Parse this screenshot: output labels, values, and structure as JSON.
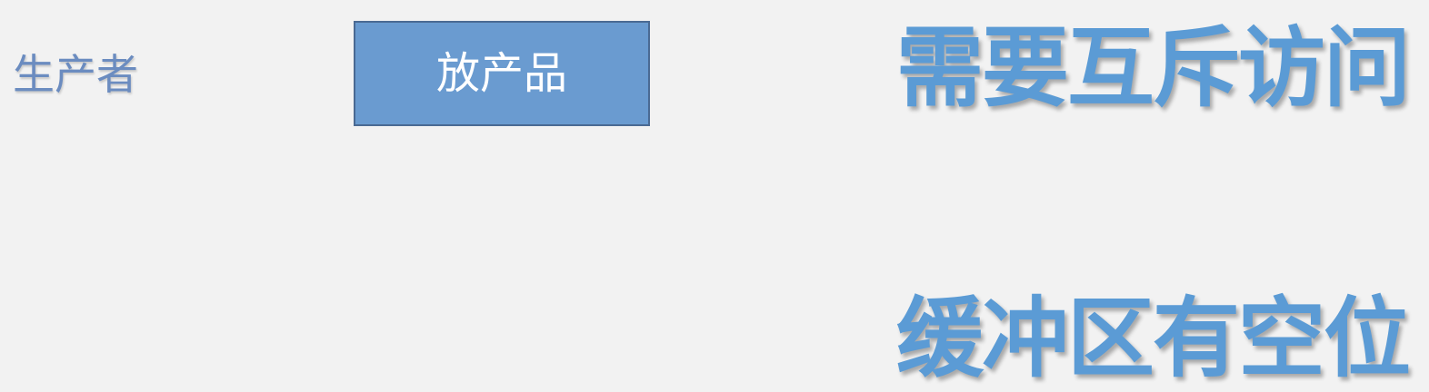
{
  "producer": {
    "label": "生产者"
  },
  "action": {
    "label": "放产品"
  },
  "conditions": [
    {
      "label": "需要互斥访问"
    },
    {
      "label": "缓冲区有空位"
    }
  ],
  "colors": {
    "background": "#f2f2f2",
    "box_fill": "#6a9bd0",
    "box_border": "#4a6a93",
    "condition_text": "#5b9bd5",
    "producer_text": "#6b8cc0"
  }
}
